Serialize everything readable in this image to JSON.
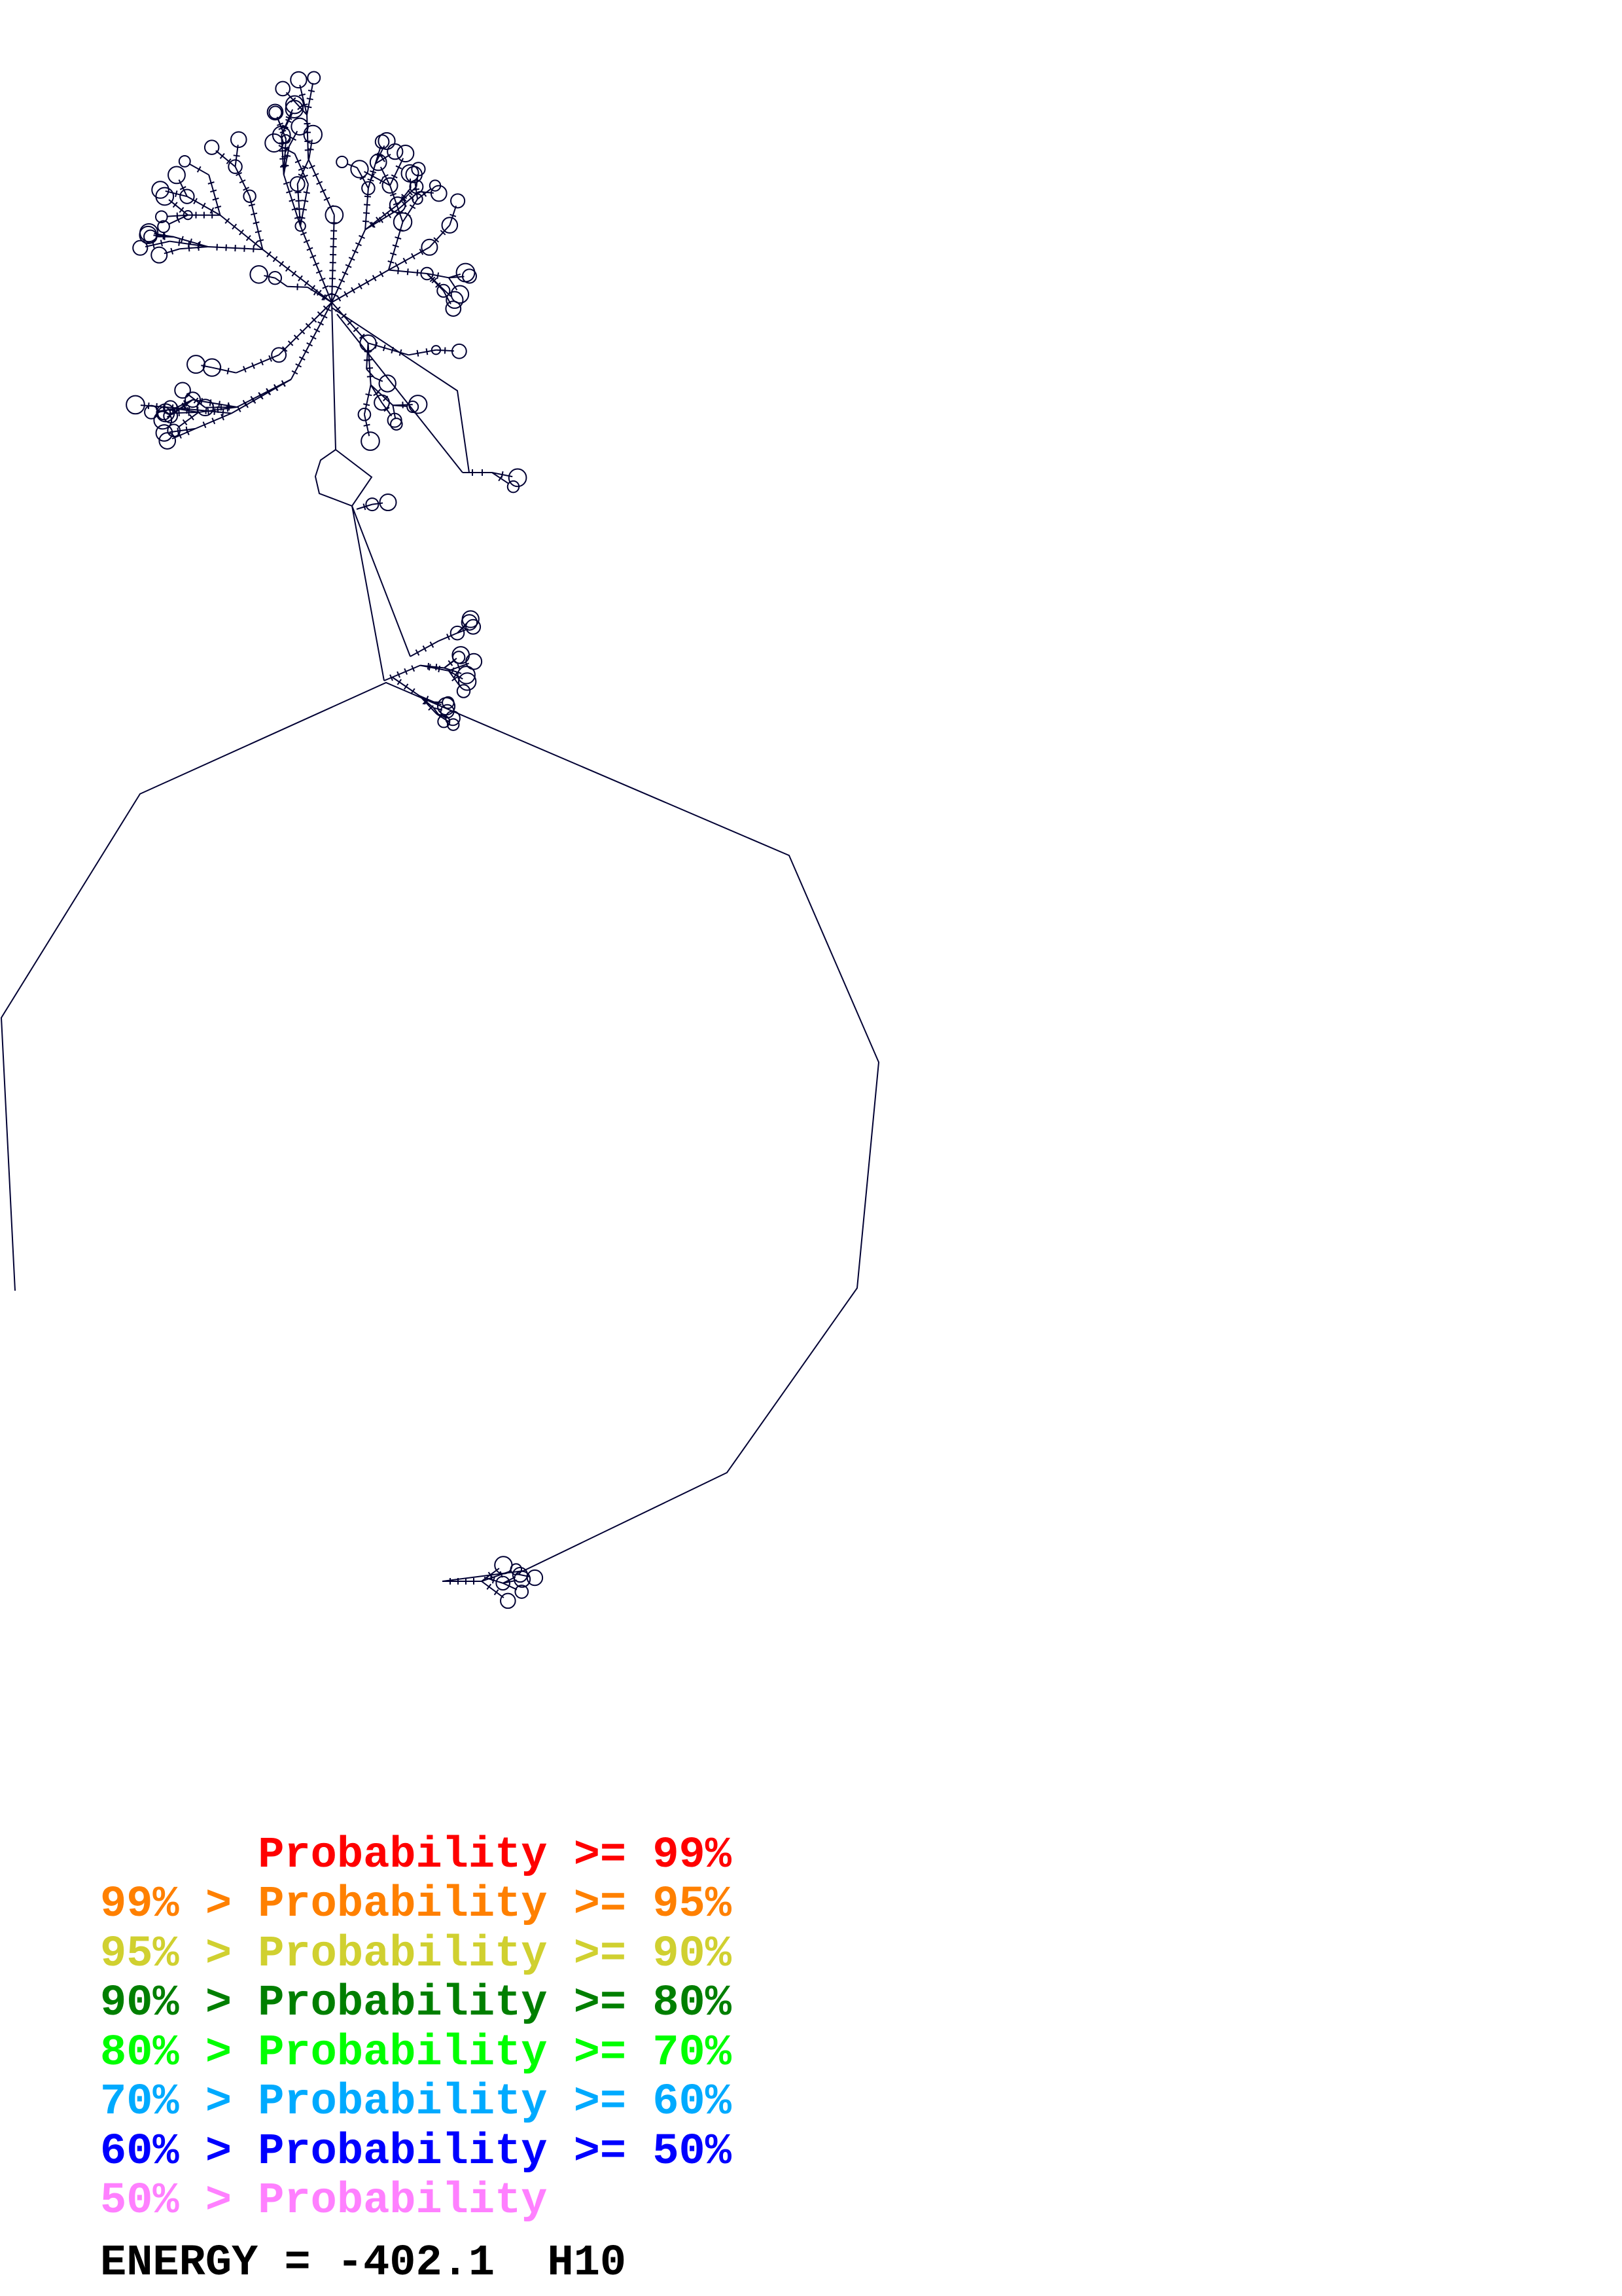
{
  "legend": {
    "rows": [
      {
        "text": "      Probability >= 99%",
        "color": "#ff0000"
      },
      {
        "text": "99% > Probability >= 95%",
        "color": "#ff8000"
      },
      {
        "text": "95% > Probability >= 90%",
        "color": "#d0d030"
      },
      {
        "text": "90% > Probability >= 80%",
        "color": "#007f00"
      },
      {
        "text": "80% > Probability >= 70%",
        "color": "#00ff00"
      },
      {
        "text": "70% > Probability >= 60%",
        "color": "#00aaff"
      },
      {
        "text": "60% > Probability >= 50%",
        "color": "#0000ff"
      },
      {
        "text": "50% > Probability",
        "color": "#ff80ff"
      }
    ],
    "energy": "ENERGY = -402.1  H10"
  },
  "structure_color": "#000033"
}
